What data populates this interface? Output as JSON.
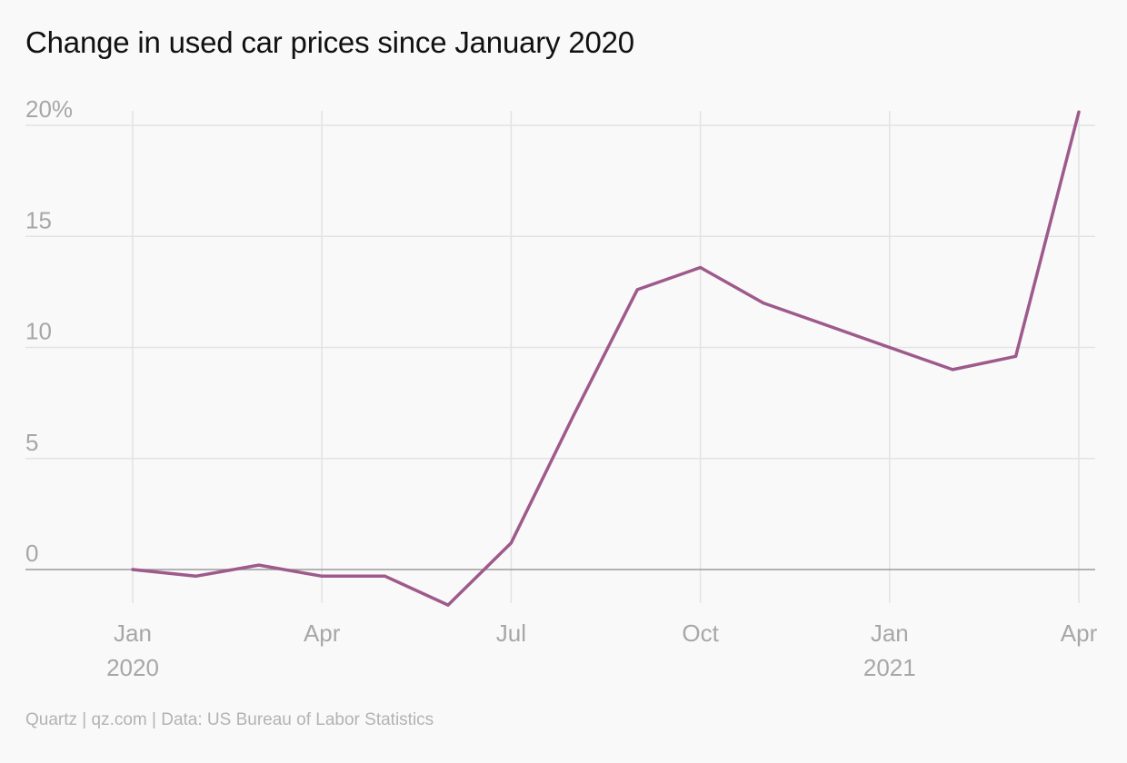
{
  "chart_data": {
    "type": "line",
    "title": "Change in used car prices since January 2020",
    "source": "Quartz | qz.com | Data: US Bureau of Labor Statistics",
    "xlabel": "",
    "ylabel": "",
    "y_ticks": [
      {
        "value": 0,
        "label": "0"
      },
      {
        "value": 5,
        "label": "5"
      },
      {
        "value": 10,
        "label": "10"
      },
      {
        "value": 15,
        "label": "15"
      },
      {
        "value": 20,
        "label": "20%"
      }
    ],
    "x_ticks": [
      {
        "date": "2020-01",
        "label": "Jan",
        "sublabel": "2020"
      },
      {
        "date": "2020-04",
        "label": "Apr",
        "sublabel": ""
      },
      {
        "date": "2020-07",
        "label": "Jul",
        "sublabel": ""
      },
      {
        "date": "2020-10",
        "label": "Oct",
        "sublabel": ""
      },
      {
        "date": "2021-01",
        "label": "Jan",
        "sublabel": "2021"
      },
      {
        "date": "2021-04",
        "label": "Apr",
        "sublabel": ""
      }
    ],
    "xlim": [
      "2020-01",
      "2021-04"
    ],
    "ylim": [
      -2,
      20.6
    ],
    "grid": true,
    "series": [
      {
        "color": "#9e5a8b",
        "x": [
          "2020-01",
          "2020-02",
          "2020-03",
          "2020-04",
          "2020-05",
          "2020-06",
          "2020-07",
          "2020-08",
          "2020-09",
          "2020-10",
          "2020-11",
          "2020-12",
          "2021-01",
          "2021-02",
          "2021-03",
          "2021-04"
        ],
        "values": [
          0,
          -0.3,
          0.2,
          -0.3,
          -0.3,
          -1.6,
          1.2,
          7,
          12.6,
          13.6,
          12,
          11,
          10,
          9,
          9.6,
          20.6
        ]
      }
    ]
  }
}
